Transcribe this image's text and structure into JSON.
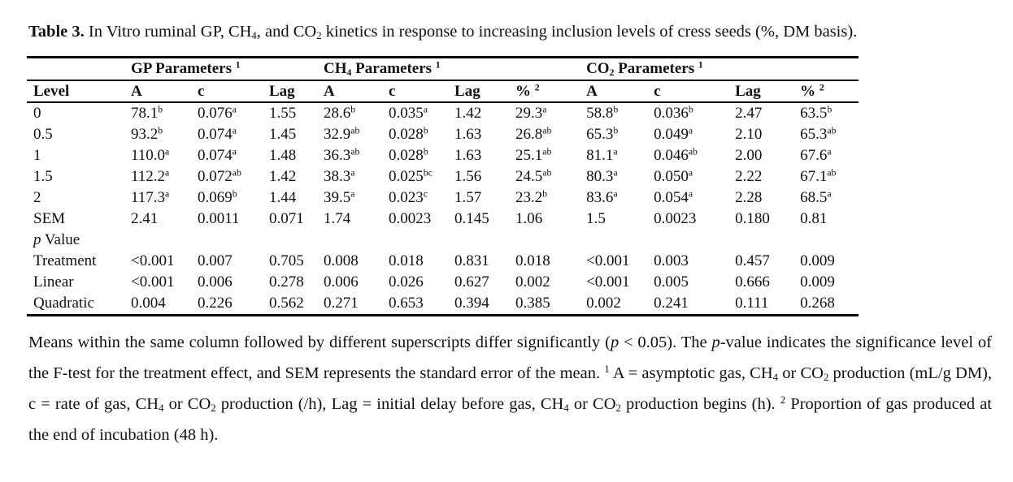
{
  "title": {
    "label": "Table 3.",
    "text": " In Vitro ruminal GP, CH~4~, and CO~2~ kinetics in response to increasing inclusion levels of cress seeds (%, DM basis)."
  },
  "table": {
    "group_headers": [
      {
        "label": "",
        "span": 1
      },
      {
        "label": "GP Parameters ^1",
        "span": 3
      },
      {
        "label": "CH~4~ Parameters ^1",
        "span": 4
      },
      {
        "label": "CO~2~ Parameters ^1",
        "span": 4
      }
    ],
    "columns": [
      "Level",
      "A",
      "c",
      "Lag",
      "A",
      "c",
      "Lag",
      "% ^2",
      "A",
      "c",
      "Lag",
      "% ^2"
    ],
    "rows": [
      {
        "label": "0",
        "cells": [
          "78.1^b",
          "0.076^a",
          "1.55",
          "28.6^b",
          "0.035^a",
          "1.42",
          "29.3^a",
          "58.8^b",
          "0.036^b",
          "2.47",
          "63.5^b"
        ]
      },
      {
        "label": "0.5",
        "cells": [
          "93.2^b",
          "0.074^a",
          "1.45",
          "32.9^ab",
          "0.028^b",
          "1.63",
          "26.8^ab",
          "65.3^b",
          "0.049^a",
          "2.10",
          "65.3^ab"
        ]
      },
      {
        "label": "1",
        "cells": [
          "110.0^a",
          "0.074^a",
          "1.48",
          "36.3^ab",
          "0.028^b",
          "1.63",
          "25.1^ab",
          "81.1^a",
          "0.046^ab",
          "2.00",
          "67.6^a"
        ]
      },
      {
        "label": "1.5",
        "cells": [
          "112.2^a",
          "0.072^ab",
          "1.42",
          "38.3^a",
          "0.025^bc",
          "1.56",
          "24.5^ab",
          "80.3^a",
          "0.050^a",
          "2.22",
          "67.1^ab"
        ]
      },
      {
        "label": "2",
        "cells": [
          "117.3^a",
          "0.069^b",
          "1.44",
          "39.5^a",
          "0.023^c",
          "1.57",
          "23.2^b",
          "83.6^a",
          "0.054^a",
          "2.28",
          "68.5^a"
        ]
      },
      {
        "label": "SEM",
        "cells": [
          "2.41",
          "0.0011",
          "0.071",
          "1.74",
          "0.0023",
          "0.145",
          "1.06",
          "1.5",
          "0.0023",
          "0.180",
          "0.81"
        ]
      },
      {
        "label": "*p* Value",
        "cells": [
          "",
          "",
          "",
          "",
          "",
          "",
          "",
          "",
          "",
          "",
          ""
        ]
      },
      {
        "label": "Treatment",
        "cells": [
          "<0.001",
          "0.007",
          "0.705",
          "0.008",
          "0.018",
          "0.831",
          "0.018",
          "<0.001",
          "0.003",
          "0.457",
          "0.009"
        ]
      },
      {
        "label": "Linear",
        "cells": [
          "<0.001",
          "0.006",
          "0.278",
          "0.006",
          "0.026",
          "0.627",
          "0.002",
          "<0.001",
          "0.005",
          "0.666",
          "0.009"
        ]
      },
      {
        "label": "Quadratic",
        "cells": [
          "0.004",
          "0.226",
          "0.562",
          "0.271",
          "0.653",
          "0.394",
          "0.385",
          "0.002",
          "0.241",
          "0.111",
          "0.268"
        ]
      }
    ]
  },
  "footnote": "Means within the same column followed by different superscripts differ significantly (*p* < 0.05). The *p*-value indicates the significance level of the F-test for the treatment effect, and SEM represents the standard error of the mean. ^1 A = asymptotic gas, CH~4~ or CO~2~ production (mL/g DM), c = rate of gas, CH~4~ or CO~2~ production (/h), Lag = initial delay before gas, CH~4~ or CO~2~ production begins (h). ^2 Proportion of gas produced at the end of incubation (48 h)."
}
